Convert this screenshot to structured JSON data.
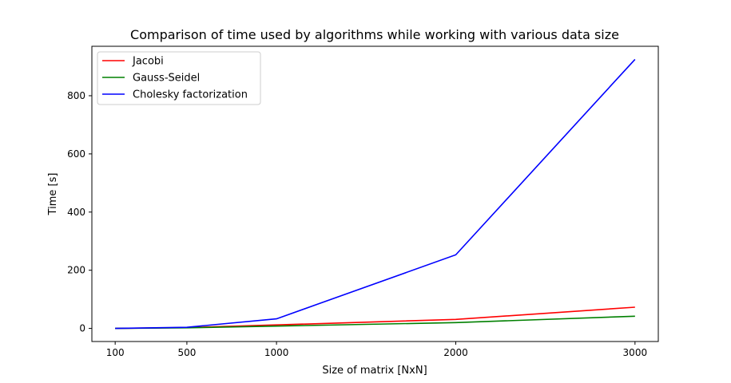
{
  "chart_data": {
    "type": "line",
    "title": "Comparison of time used by algorithms while working with various data size",
    "xlabel": "Size of matrix [NxN]",
    "ylabel": "Time [s]",
    "x": [
      100,
      500,
      1000,
      2000,
      3000
    ],
    "xlim": [
      -30,
      3130
    ],
    "ylim": [
      -45,
      970
    ],
    "xticks": [
      100,
      500,
      1000,
      2000,
      3000
    ],
    "yticks": [
      0,
      200,
      400,
      600,
      800
    ],
    "grid": false,
    "legend_position": "top-left",
    "series": [
      {
        "name": "Jacobi",
        "color": "#ff0000",
        "values": [
          0.1,
          3,
          12,
          31,
          73
        ]
      },
      {
        "name": "Gauss-Seidel",
        "color": "#008000",
        "values": [
          0.1,
          2,
          8,
          20,
          42
        ]
      },
      {
        "name": "Cholesky factorization",
        "color": "#0000ff",
        "values": [
          0.2,
          4,
          33,
          253,
          925
        ]
      }
    ]
  }
}
